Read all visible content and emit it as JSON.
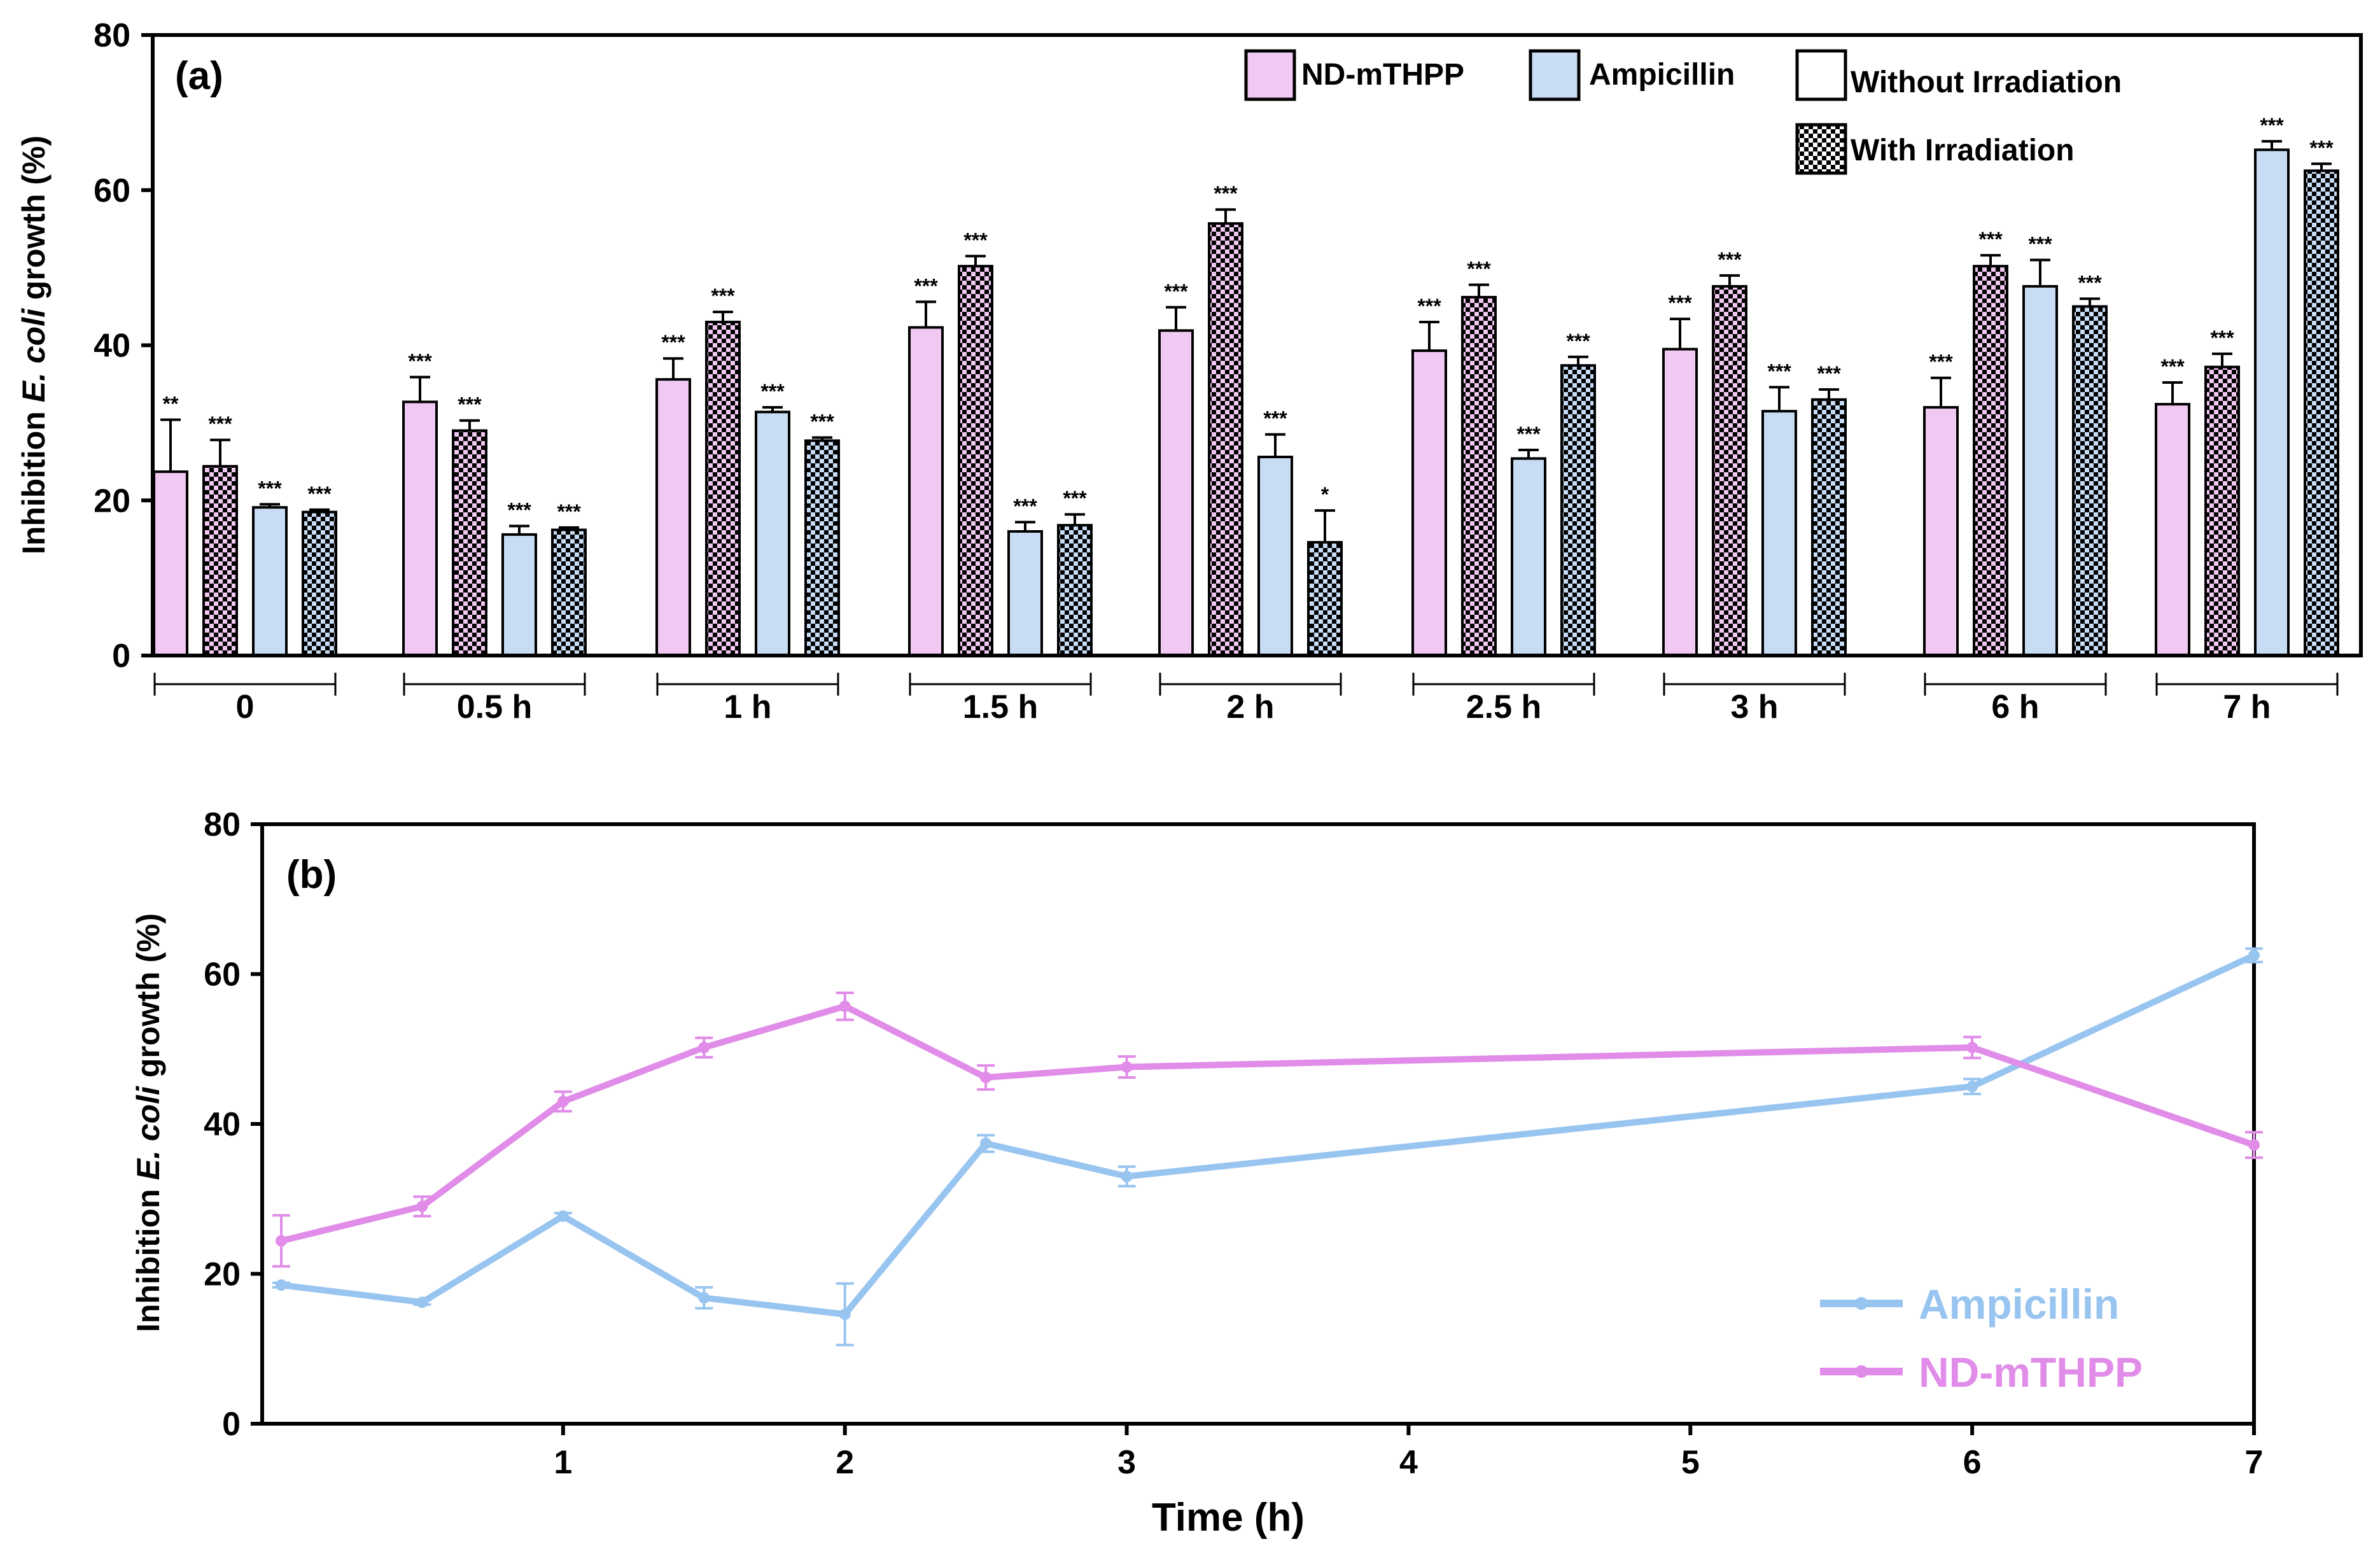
{
  "chart_data": [
    {
      "type": "bar",
      "panel_label": "(a)",
      "ylabel_prefix": "Inhibition ",
      "ylabel_italic": "E. coli",
      "ylabel_suffix": " growth (%)",
      "ylim": [
        0,
        80
      ],
      "yticks": [
        "0",
        "20",
        "40",
        "60",
        "80"
      ],
      "categories": [
        "0",
        "0.5 h",
        "1 h",
        "1.5 h",
        "2 h",
        "2.5 h",
        "3 h",
        "6 h",
        "7 h"
      ],
      "legend": {
        "nd": "ND-mTHPP",
        "amp": "Ampicillin",
        "without": "Without Irradiation",
        "with": "With Irradiation"
      },
      "colors": {
        "nd": "#f0c8f2",
        "amp": "#c8dcf4",
        "axis": "#000000"
      },
      "series": [
        {
          "name": "ND-mTHPP Without Irradiation",
          "color_key": "nd",
          "pattern": false,
          "values": [
            23.7,
            32.7,
            35.6,
            42.3,
            41.9,
            39.3,
            39.5,
            32.0,
            32.4
          ],
          "errors": [
            6.7,
            3.2,
            2.7,
            3.3,
            3.0,
            3.7,
            3.9,
            3.8,
            2.8
          ],
          "sig": [
            "**",
            "***",
            "***",
            "***",
            "***",
            "***",
            "***",
            "***",
            "***"
          ]
        },
        {
          "name": "ND-mTHPP With Irradiation",
          "color_key": "nd",
          "pattern": true,
          "values": [
            24.4,
            29.0,
            43.0,
            50.2,
            55.7,
            46.2,
            47.6,
            50.2,
            37.2
          ],
          "errors": [
            3.4,
            1.3,
            1.3,
            1.3,
            1.8,
            1.6,
            1.4,
            1.4,
            1.7
          ],
          "sig": [
            "***",
            "***",
            "***",
            "***",
            "***",
            "***",
            "***",
            "***",
            "***"
          ]
        },
        {
          "name": "Ampicillin Without Irradiation",
          "color_key": "amp",
          "pattern": false,
          "values": [
            19.1,
            15.6,
            31.4,
            16.0,
            25.6,
            25.4,
            31.5,
            47.6,
            65.2
          ],
          "errors": [
            0.4,
            1.1,
            0.6,
            1.2,
            2.9,
            1.1,
            3.1,
            3.4,
            1.1
          ],
          "sig": [
            "***",
            "***",
            "***",
            "***",
            "***",
            "***",
            "***",
            "***",
            "***"
          ]
        },
        {
          "name": "Ampicillin With Irradiation",
          "color_key": "amp",
          "pattern": true,
          "values": [
            18.5,
            16.2,
            27.7,
            16.8,
            14.6,
            37.4,
            33.0,
            45.0,
            62.5
          ],
          "errors": [
            0.3,
            0.3,
            0.4,
            1.4,
            4.1,
            1.1,
            1.3,
            1.0,
            0.9
          ],
          "sig": [
            "***",
            "***",
            "***",
            "***",
            "*",
            "***",
            "***",
            "***",
            "***"
          ]
        }
      ]
    },
    {
      "type": "line",
      "panel_label": "(b)",
      "xlabel": "Time (h)",
      "ylabel_prefix": "Inhibition ",
      "ylabel_italic": "E. coli",
      "ylabel_suffix": " growth (%)",
      "xlim": [
        0,
        7
      ],
      "ylim": [
        0,
        80
      ],
      "xticks": [
        "1",
        "2",
        "3",
        "4",
        "5",
        "6",
        "7"
      ],
      "yticks": [
        "0",
        "20",
        "40",
        "60",
        "80"
      ],
      "x": [
        0,
        0.5,
        1,
        1.5,
        2,
        2.5,
        3,
        6,
        7
      ],
      "colors": {
        "amp": "#98c4f0",
        "nd": "#e08ce8"
      },
      "series": [
        {
          "name": "Ampicillin",
          "color_key": "amp",
          "values": [
            18.5,
            16.2,
            27.7,
            16.8,
            14.6,
            37.4,
            33.0,
            45.0,
            62.5
          ],
          "errors": [
            0.3,
            0.3,
            0.4,
            1.4,
            4.1,
            1.1,
            1.3,
            1.0,
            0.9
          ]
        },
        {
          "name": "ND-mTHPP",
          "color_key": "nd",
          "values": [
            24.4,
            29.0,
            43.0,
            50.2,
            55.7,
            46.2,
            47.6,
            50.2,
            37.2
          ],
          "errors": [
            3.4,
            1.3,
            1.3,
            1.3,
            1.8,
            1.6,
            1.4,
            1.4,
            1.7
          ]
        }
      ]
    }
  ]
}
